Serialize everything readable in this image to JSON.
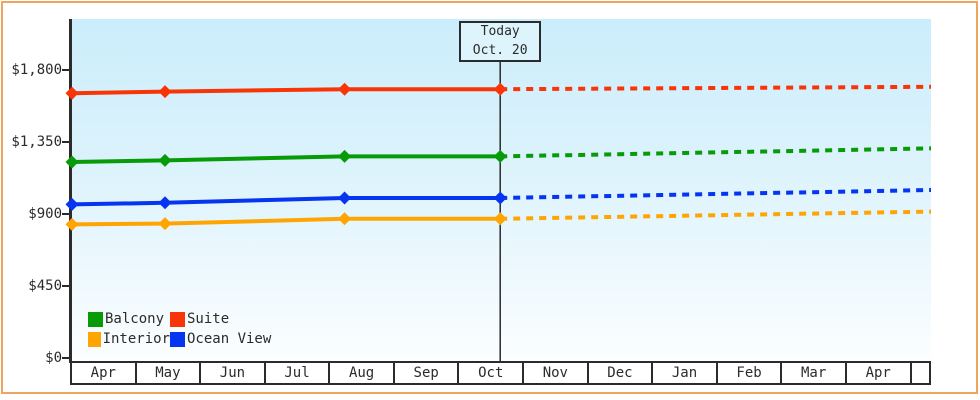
{
  "window": {
    "frame_border_color": "#F0A55F",
    "plot_gradient_top": "#CBEDFB",
    "plot_gradient_bottom": "#FCFEFF",
    "axis_color": "#2b2b2b"
  },
  "chart_data": {
    "type": "line",
    "title": "",
    "xlabel": "",
    "ylabel": "",
    "ylim": [
      0,
      1800
    ],
    "grid": false,
    "legend_position": "bottom-left",
    "y_ticks": [
      {
        "label": "$1,800",
        "value": 1800
      },
      {
        "label": "$1,350",
        "value": 1350
      },
      {
        "label": "$900",
        "value": 900
      },
      {
        "label": "$450",
        "value": 450
      },
      {
        "label": "$0",
        "value": 0
      }
    ],
    "x_months": [
      "Apr",
      "May",
      "Jun",
      "Jul",
      "Aug",
      "Sep",
      "Oct",
      "Nov",
      "Dec",
      "Jan",
      "Feb",
      "Mar",
      "Apr"
    ],
    "x_axis_extent_months": 13.3,
    "today": {
      "line1": "Today",
      "line2": "Oct. 20",
      "month_frac": 6.63
    },
    "series": [
      {
        "name": "Suite",
        "color": "#F93508",
        "solid_points": [
          {
            "m": 0,
            "price": 1655
          },
          {
            "m": 1.44,
            "price": 1665
          },
          {
            "m": 4.22,
            "price": 1680
          },
          {
            "m": 6.63,
            "price": 1680
          }
        ],
        "forecast_points": [
          {
            "m": 6.63,
            "price": 1680
          },
          {
            "m": 13.3,
            "price": 1695
          }
        ]
      },
      {
        "name": "Balcony",
        "color": "#089B08",
        "solid_points": [
          {
            "m": 0,
            "price": 1225
          },
          {
            "m": 1.44,
            "price": 1235
          },
          {
            "m": 4.22,
            "price": 1260
          },
          {
            "m": 6.63,
            "price": 1260
          }
        ],
        "forecast_points": [
          {
            "m": 6.63,
            "price": 1260
          },
          {
            "m": 13.3,
            "price": 1310
          }
        ]
      },
      {
        "name": "Ocean View",
        "color": "#0535F0",
        "solid_points": [
          {
            "m": 0,
            "price": 960
          },
          {
            "m": 1.44,
            "price": 970
          },
          {
            "m": 4.22,
            "price": 1000
          },
          {
            "m": 6.63,
            "price": 1000
          }
        ],
        "forecast_points": [
          {
            "m": 6.63,
            "price": 1000
          },
          {
            "m": 13.3,
            "price": 1050
          }
        ]
      },
      {
        "name": "Interior",
        "color": "#FFA503",
        "solid_points": [
          {
            "m": 0,
            "price": 835
          },
          {
            "m": 1.44,
            "price": 840
          },
          {
            "m": 4.22,
            "price": 870
          },
          {
            "m": 6.63,
            "price": 870
          }
        ],
        "forecast_points": [
          {
            "m": 6.63,
            "price": 870
          },
          {
            "m": 13.3,
            "price": 915
          }
        ]
      }
    ]
  },
  "legend": {
    "items": [
      {
        "label": "Balcony",
        "color": "#089B08"
      },
      {
        "label": "Suite",
        "color": "#F93508"
      },
      {
        "label": "Interior",
        "color": "#FFA503"
      },
      {
        "label": "Ocean View",
        "color": "#0535F0"
      }
    ]
  }
}
